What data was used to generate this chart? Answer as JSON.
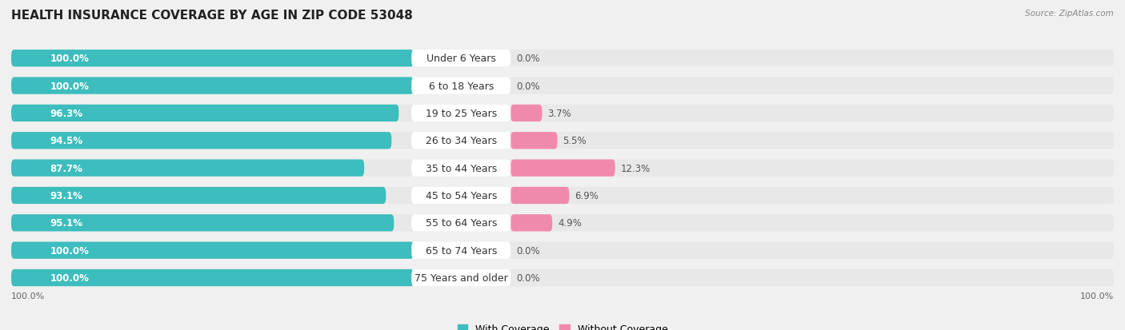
{
  "title": "HEALTH INSURANCE COVERAGE BY AGE IN ZIP CODE 53048",
  "source": "Source: ZipAtlas.com",
  "categories": [
    "Under 6 Years",
    "6 to 18 Years",
    "19 to 25 Years",
    "26 to 34 Years",
    "35 to 44 Years",
    "45 to 54 Years",
    "55 to 64 Years",
    "65 to 74 Years",
    "75 Years and older"
  ],
  "with_coverage": [
    100.0,
    100.0,
    96.3,
    94.5,
    87.7,
    93.1,
    95.1,
    100.0,
    100.0
  ],
  "without_coverage": [
    0.0,
    0.0,
    3.7,
    5.5,
    12.3,
    6.9,
    4.9,
    0.0,
    0.0
  ],
  "color_with": "#3dbdbd",
  "color_without": "#f08aad",
  "color_with_light": "#7dd4d4",
  "bg_color": "#f0f0f0",
  "bar_bg_color": "#e0e0e0",
  "row_bg_color": "#e8e8e8",
  "title_fontsize": 11,
  "label_fontsize": 8.5,
  "cat_fontsize": 9,
  "legend_fontsize": 9,
  "axis_label_fontsize": 8,
  "with_label_color": "white",
  "without_label_color": "#555555",
  "cat_label_color": "#333333"
}
